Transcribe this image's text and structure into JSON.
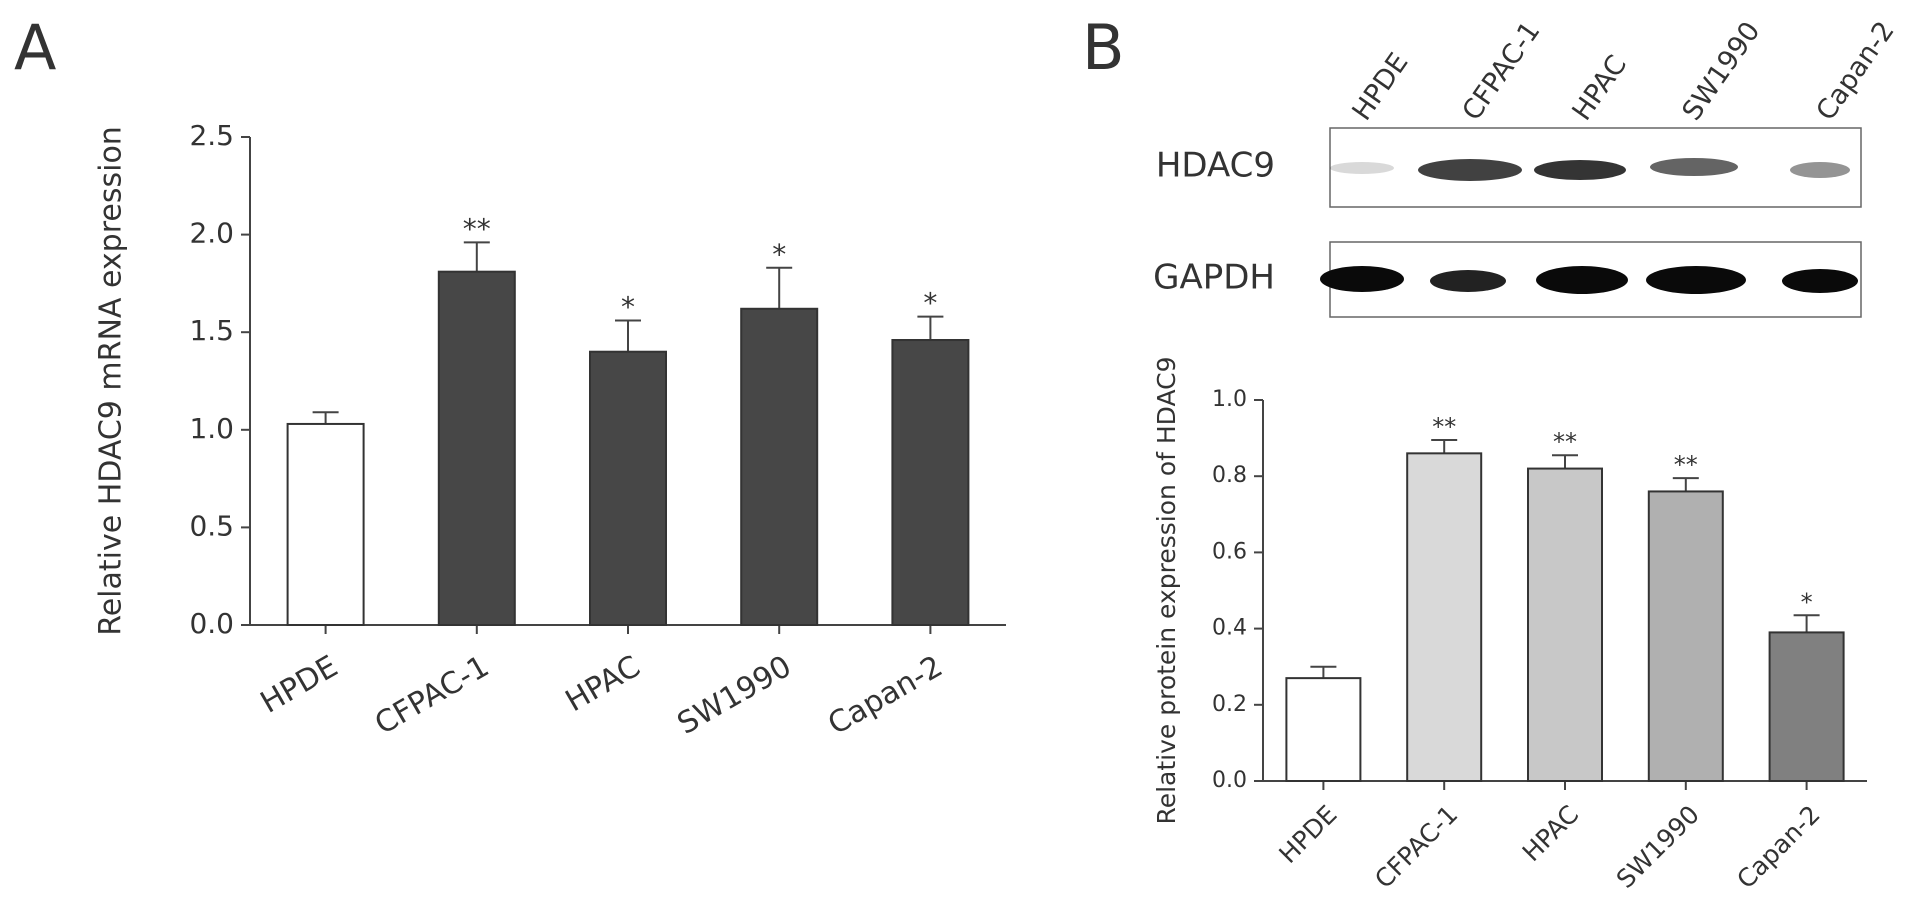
{
  "panels": [
    "A",
    "B"
  ],
  "blot": {
    "lanes": [
      "HPDE",
      "CFPAC-1",
      "HPAC",
      "SW1990",
      "Capan-2"
    ],
    "rows": [
      "HDAC9",
      "GAPDH"
    ]
  },
  "chart_data": [
    {
      "type": "bar",
      "y_label": "Relative HDAC9 mRNA expression",
      "categories": [
        "HPDE",
        "CFPAC-1",
        "HPAC",
        "SW1990",
        "Capan-2"
      ],
      "values": [
        1.03,
        1.81,
        1.4,
        1.62,
        1.46
      ],
      "errors": [
        0.06,
        0.15,
        0.16,
        0.21,
        0.12
      ],
      "annotations": [
        null,
        "**",
        "*",
        "*",
        "*"
      ],
      "colors": [
        "#ffffff",
        "#474747",
        "#474747",
        "#474747",
        "#474747"
      ],
      "ylim": [
        0,
        2.5
      ],
      "yticks": [
        {
          "value": 0,
          "label": "0.0"
        },
        0.5,
        {
          "value": 1,
          "label": "1.0"
        },
        1.5,
        {
          "value": 2,
          "label": "2.0"
        },
        2.5
      ]
    },
    {
      "type": "bar",
      "y_label": "Relative protein expression of HDAC9",
      "categories": [
        "HPDE",
        "CFPAC-1",
        "HPAC",
        "SW1990",
        "Capan-2"
      ],
      "values": [
        0.27,
        0.86,
        0.82,
        0.76,
        0.39
      ],
      "errors": [
        0.03,
        0.035,
        0.035,
        0.035,
        0.045
      ],
      "annotations": [
        null,
        "**",
        "**",
        "**",
        "*"
      ],
      "colors": [
        "#ffffff",
        "#d9d9d9",
        "#c8c8c8",
        "#b0b0b0",
        "#808080"
      ],
      "ylim": [
        0,
        1.0
      ],
      "yticks": [
        {
          "value": 0,
          "label": "0.0"
        },
        0.2,
        0.4,
        0.6,
        0.8,
        {
          "value": 1,
          "label": "1.0"
        }
      ]
    }
  ]
}
